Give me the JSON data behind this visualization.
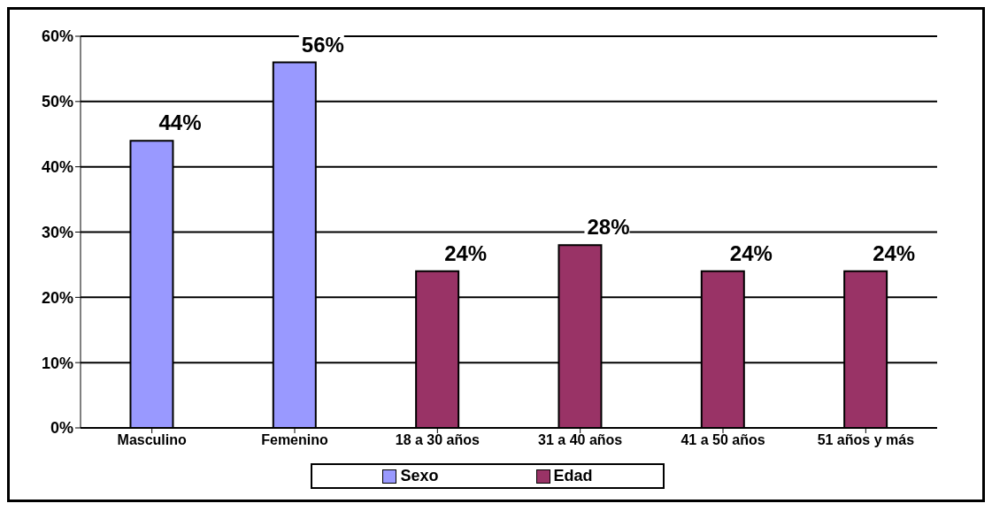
{
  "chart_data": {
    "type": "bar",
    "categories": [
      "Masculino",
      "Femenino",
      "18 a 30 años",
      "31 a 40 años",
      "41 a 50 años",
      "51 años y más"
    ],
    "series": [
      {
        "name": "Sexo",
        "color": "#9999ff",
        "values": [
          44,
          56,
          null,
          null,
          null,
          null
        ],
        "value_labels": [
          "44%",
          "56%",
          null,
          null,
          null,
          null
        ]
      },
      {
        "name": "Edad",
        "color": "#993366",
        "values": [
          null,
          null,
          24,
          28,
          24,
          24
        ],
        "value_labels": [
          null,
          null,
          "24%",
          "28%",
          "24%",
          "24%"
        ]
      }
    ],
    "ylim": [
      0,
      60
    ],
    "yticks": [
      {
        "value": 0,
        "label": "0%"
      },
      {
        "value": 10,
        "label": "10%"
      },
      {
        "value": 20,
        "label": "20%"
      },
      {
        "value": 30,
        "label": "30%"
      },
      {
        "value": 40,
        "label": "40%"
      },
      {
        "value": 50,
        "label": "50%"
      },
      {
        "value": 60,
        "label": "60%"
      }
    ],
    "grid": "y",
    "legend": "bottom"
  }
}
